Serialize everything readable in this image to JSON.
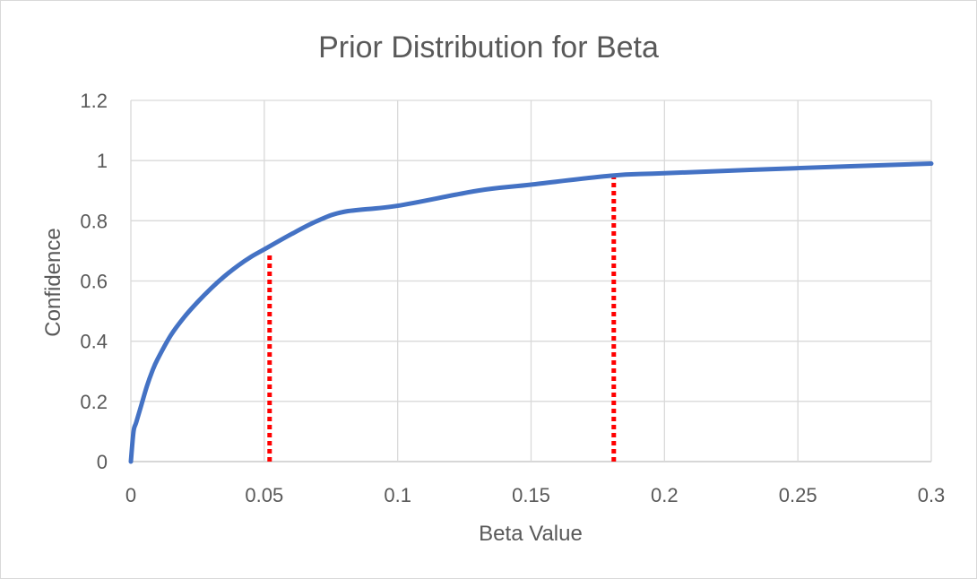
{
  "chart_data": {
    "type": "line",
    "title": "Prior Distribution for Beta",
    "xlabel": "Beta Value",
    "ylabel": "Confidence",
    "xlim": [
      0,
      0.3
    ],
    "ylim": [
      0,
      1.2
    ],
    "x_ticks": [
      0,
      0.05,
      0.1,
      0.15,
      0.2,
      0.25,
      0.3
    ],
    "x_tick_labels": [
      "0",
      "0.05",
      "0.1",
      "0.15",
      "0.2",
      "0.25",
      "0.3"
    ],
    "y_ticks": [
      0,
      0.2,
      0.4,
      0.6,
      0.8,
      1,
      1.2
    ],
    "y_tick_labels": [
      "0",
      "0.2",
      "0.4",
      "0.6",
      "0.8",
      "1",
      "1.2"
    ],
    "grid": true,
    "legend": "none",
    "series": [
      {
        "name": "Confidence",
        "color": "#4472C4",
        "x": [
          0,
          0.001,
          0.002,
          0.004,
          0.006,
          0.008,
          0.01,
          0.015,
          0.02,
          0.025,
          0.03,
          0.035,
          0.04,
          0.045,
          0.05,
          0.06,
          0.07,
          0.08,
          0.1,
          0.13,
          0.15,
          0.18,
          0.2,
          0.25,
          0.3
        ],
        "values": [
          0,
          0.1,
          0.13,
          0.19,
          0.25,
          0.3,
          0.34,
          0.42,
          0.48,
          0.53,
          0.575,
          0.615,
          0.65,
          0.68,
          0.705,
          0.755,
          0.8,
          0.83,
          0.85,
          0.9,
          0.92,
          0.95,
          0.958,
          0.975,
          0.99
        ]
      }
    ],
    "markers": [
      {
        "name": "lower-bound",
        "x": 0.052,
        "y": 0.69,
        "color": "#FF0000",
        "style": "dotted"
      },
      {
        "name": "upper-bound",
        "x": 0.181,
        "y": 0.945,
        "color": "#FF0000",
        "style": "dotted"
      }
    ]
  }
}
